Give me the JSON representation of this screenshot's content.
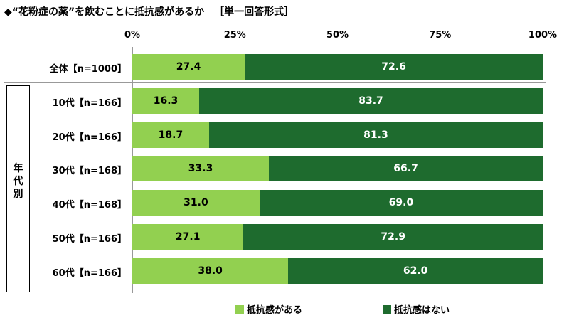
{
  "title": {
    "main": "◆“花粉症の薬”を飲むことに抵抗感があるか",
    "format": "［単一回答形式］"
  },
  "colors": {
    "yes": "#92d050",
    "no": "#1e6b2e",
    "yes_text": "#000000",
    "no_text": "#ffffff"
  },
  "legend": {
    "yes": "抵抗感がある",
    "no": "抵抗感はない"
  },
  "group_label": "年代別",
  "chart_data": {
    "type": "bar",
    "orientation": "horizontal",
    "stacked": true,
    "title": "◆“花粉症の薬”を飲むことに抵抗感があるか ［単一回答形式］",
    "x_ticks": [
      "0%",
      "25%",
      "50%",
      "75%",
      "100%"
    ],
    "xlim": [
      0,
      100
    ],
    "categories": [
      "全体【n=1000】",
      "10代【n=166】",
      "20代【n=166】",
      "30代【n=168】",
      "40代【n=168】",
      "50代【n=166】",
      "60代【n=166】"
    ],
    "series": [
      {
        "name": "抵抗感がある",
        "values": [
          27.4,
          16.3,
          18.7,
          33.3,
          31.0,
          27.1,
          38.0
        ],
        "labels": [
          "27.4",
          "16.3",
          "18.7",
          "33.3",
          "31.0",
          "27.1",
          "38.0"
        ]
      },
      {
        "name": "抵抗感はない",
        "values": [
          72.6,
          83.7,
          81.3,
          66.7,
          69.0,
          72.9,
          62.0
        ],
        "labels": [
          "72.6",
          "83.7",
          "81.3",
          "66.7",
          "69.0",
          "72.9",
          "62.0"
        ]
      }
    ],
    "legend_position": "bottom",
    "grid": false
  }
}
